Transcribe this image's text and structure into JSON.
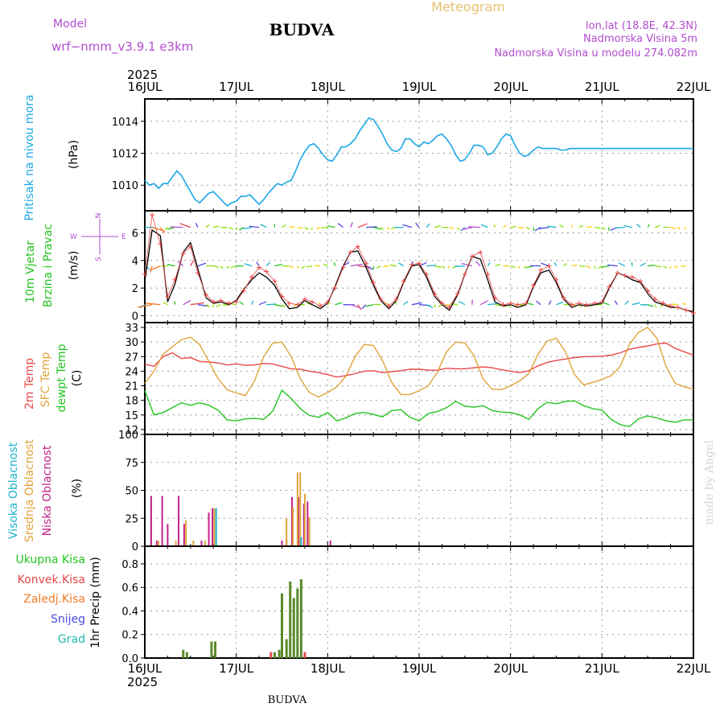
{
  "header": {
    "model_label": "Model",
    "model_name": "wrf−nmm_v3.9.1  e3km",
    "station": "BUDVA",
    "meteogram": "Meteogram",
    "lonlat": "lon,lat (18.8E, 42.3N)",
    "altitude": "Nadmorska Visina 5m",
    "model_altitude": "Nadmorska Visina u modelu 274.082m",
    "watermark": "made by Angel",
    "footer_station": "BUDVA"
  },
  "colors": {
    "pressure": "#1aa7e6",
    "t2m": "#e8484a",
    "sfc": "#e0a33a",
    "dewpt": "#22c41f",
    "high": "#1ab3cc",
    "mid": "#e0a33a",
    "low": "#c2228a",
    "total": "#5a8a2a",
    "conv": "#e8484a",
    "frozen": "#f07a2a",
    "snow": "#4a4ae0",
    "hail": "#22b8b0",
    "wind_obs": "#000000",
    "wind_cross": "#e8484a",
    "title_purple": "#b24ccf",
    "title_gold": "#e8c070"
  },
  "time_axis": {
    "year": "2025",
    "labels": [
      "16JUL",
      "17JUL",
      "18JUL",
      "19JUL",
      "20JUL",
      "21JUL",
      "22JUL"
    ]
  },
  "chart_data": [
    {
      "type": "line",
      "title": "Pritisak na nivou mora",
      "ylabel": "(hPa)",
      "ylim": [
        1008.4,
        1015.4
      ],
      "yticks": [
        1010,
        1012,
        1014
      ],
      "x_days": [
        0,
        0.05,
        0.1,
        0.15,
        0.2,
        0.25,
        0.3,
        0.35,
        0.4,
        0.45,
        0.5,
        0.55,
        0.6,
        0.65,
        0.7,
        0.75,
        0.8,
        0.85,
        0.9,
        0.95,
        1.0,
        1.05,
        1.1,
        1.15,
        1.2,
        1.25,
        1.3,
        1.35,
        1.4,
        1.45,
        1.5,
        1.55,
        1.6,
        1.65,
        1.7,
        1.75,
        1.8,
        1.85,
        1.9,
        1.95,
        2.0,
        2.05,
        2.1,
        2.15,
        2.2,
        2.25,
        2.3,
        2.35,
        2.4,
        2.45,
        2.5,
        2.55,
        2.6,
        2.65,
        2.7,
        2.75,
        2.8,
        2.85,
        2.9,
        2.95,
        3.0,
        3.05,
        3.1,
        3.15,
        3.2,
        3.25,
        3.3,
        3.35,
        3.4,
        3.45,
        3.5,
        3.55,
        3.6,
        3.65,
        3.7,
        3.75,
        3.8,
        3.85,
        3.9,
        3.95,
        4.0,
        4.05,
        4.1,
        4.15,
        4.2,
        4.25,
        4.3,
        4.35,
        4.4,
        4.45,
        4.5,
        4.55,
        4.6,
        4.65,
        4.7,
        4.75,
        4.8,
        4.85,
        4.9,
        4.95,
        5.0,
        5.05,
        5.1,
        5.15,
        5.2,
        5.25,
        5.3,
        5.35,
        5.4,
        5.45,
        5.5,
        5.55,
        5.6,
        5.65,
        5.7,
        5.75,
        5.8,
        5.85,
        5.9,
        5.95,
        6.0
      ],
      "values": [
        1010.3,
        1010.0,
        1010.1,
        1009.8,
        1010.1,
        1010.1,
        1010.5,
        1010.9,
        1010.6,
        1010.1,
        1009.6,
        1009.1,
        1008.9,
        1009.2,
        1009.5,
        1009.6,
        1009.3,
        1009.0,
        1008.7,
        1008.9,
        1009.0,
        1009.3,
        1009.3,
        1009.4,
        1009.1,
        1008.8,
        1009.1,
        1009.5,
        1009.8,
        1010.1,
        1010.0,
        1010.2,
        1010.3,
        1010.9,
        1011.6,
        1012.1,
        1012.5,
        1012.6,
        1012.3,
        1011.9,
        1011.6,
        1011.5,
        1011.9,
        1012.4,
        1012.4,
        1012.6,
        1012.9,
        1013.4,
        1013.8,
        1014.2,
        1014.1,
        1013.7,
        1013.2,
        1012.6,
        1012.2,
        1012.1,
        1012.3,
        1012.9,
        1012.9,
        1012.6,
        1012.4,
        1012.7,
        1012.6,
        1012.8,
        1013.1,
        1013.2,
        1012.9,
        1012.5,
        1011.9,
        1011.5,
        1011.6,
        1012.0,
        1012.5,
        1012.5,
        1012.4,
        1011.9,
        1012.0,
        1012.4,
        1012.9,
        1013.2,
        1013.1,
        1012.5,
        1012.0,
        1011.8,
        1011.9,
        1012.2,
        1012.4,
        1012.3,
        1012.3,
        1012.3,
        1012.3,
        1012.2,
        1012.2,
        1012.3,
        1012.3,
        1012.3,
        1012.3,
        1012.3,
        1012.3,
        1012.3,
        1012.3,
        1012.3,
        1012.3,
        1012.3,
        1012.3,
        1012.3,
        1012.3,
        1012.3,
        1012.3,
        1012.3,
        1012.3,
        1012.3,
        1012.3,
        1012.3,
        1012.3,
        1012.3,
        1012.3,
        1012.3,
        1012.3,
        1012.3,
        1012.3
      ]
    },
    {
      "type": "line",
      "title": "10m Vjetar Brzina i Pravac",
      "ylabel": "(m/s)",
      "compass": [
        "N",
        "W",
        "E",
        "S"
      ],
      "ylim": [
        -0.5,
        7.6
      ],
      "yticks": [
        0,
        2,
        4,
        6
      ],
      "x_days": [
        0,
        0.08,
        0.17,
        0.25,
        0.33,
        0.42,
        0.5,
        0.58,
        0.67,
        0.75,
        0.83,
        0.92,
        1.0,
        1.08,
        1.17,
        1.25,
        1.33,
        1.42,
        1.5,
        1.58,
        1.67,
        1.75,
        1.83,
        1.92,
        2.0,
        2.08,
        2.17,
        2.25,
        2.33,
        2.42,
        2.5,
        2.58,
        2.67,
        2.75,
        2.83,
        2.92,
        3.0,
        3.08,
        3.17,
        3.25,
        3.33,
        3.42,
        3.5,
        3.58,
        3.67,
        3.75,
        3.83,
        3.92,
        4.0,
        4.08,
        4.17,
        4.25,
        4.33,
        4.42,
        4.5,
        4.58,
        4.67,
        4.75,
        4.83,
        4.92,
        5.0,
        5.08,
        5.17,
        5.25,
        5.33,
        5.42,
        5.5,
        5.58,
        5.67,
        5.75,
        5.83,
        5.92,
        6.0
      ],
      "speed": [
        2.5,
        6.2,
        5.8,
        1.0,
        2.3,
        4.6,
        5.3,
        3.4,
        1.3,
        0.9,
        1.0,
        0.8,
        1.1,
        1.9,
        2.6,
        3.1,
        2.8,
        2.2,
        1.2,
        0.5,
        0.6,
        1.1,
        0.8,
        0.5,
        0.9,
        2.1,
        3.6,
        4.6,
        4.7,
        3.5,
        2.2,
        1.1,
        0.5,
        1.1,
        2.4,
        3.6,
        3.7,
        2.8,
        1.4,
        0.8,
        0.4,
        1.5,
        3.0,
        4.3,
        4.1,
        2.6,
        1.0,
        0.7,
        0.8,
        0.6,
        0.8,
        2.1,
        3.1,
        3.3,
        2.4,
        1.2,
        0.6,
        0.8,
        0.7,
        0.8,
        0.9,
        2.0,
        3.1,
        2.9,
        2.6,
        2.4,
        1.6,
        1.0,
        0.8,
        0.6,
        0.6,
        0.4,
        0.3
      ],
      "model_speed": [
        3.0,
        7.3,
        5.2,
        1.4,
        2.6,
        4.5,
        5.0,
        3.1,
        1.5,
        1.0,
        1.1,
        0.9,
        1.0,
        1.8,
        2.8,
        3.5,
        3.2,
        2.5,
        1.4,
        0.9,
        0.8,
        1.2,
        1.0,
        0.7,
        1.0,
        2.0,
        3.5,
        4.6,
        5.0,
        3.8,
        2.4,
        1.2,
        0.7,
        1.2,
        2.5,
        3.7,
        3.8,
        3.0,
        1.6,
        0.9,
        0.6,
        1.6,
        3.0,
        4.3,
        4.6,
        3.0,
        1.3,
        0.8,
        0.9,
        0.8,
        0.9,
        2.2,
        3.3,
        3.6,
        2.6,
        1.3,
        0.8,
        0.9,
        0.8,
        0.9,
        1.0,
        2.1,
        3.1,
        2.9,
        2.8,
        2.5,
        1.8,
        1.2,
        0.9,
        0.7,
        0.6,
        0.4,
        0.2
      ],
      "arrow_rows": [
        6.4,
        3.6,
        0.8
      ]
    },
    {
      "type": "line",
      "title": "2m Temp / SFC Temp / dewpt Temp",
      "ylabel": "(C)",
      "ylim": [
        11.0,
        34.0
      ],
      "yticks": [
        12,
        15,
        18,
        21,
        24,
        27,
        30,
        33
      ],
      "x_days": [
        0,
        0.1,
        0.2,
        0.3,
        0.4,
        0.5,
        0.6,
        0.7,
        0.8,
        0.9,
        1.0,
        1.1,
        1.2,
        1.3,
        1.4,
        1.5,
        1.6,
        1.7,
        1.8,
        1.9,
        2.0,
        2.1,
        2.2,
        2.3,
        2.4,
        2.5,
        2.6,
        2.7,
        2.8,
        2.9,
        3.0,
        3.1,
        3.2,
        3.3,
        3.4,
        3.5,
        3.6,
        3.7,
        3.8,
        3.9,
        4.0,
        4.1,
        4.2,
        4.3,
        4.4,
        4.5,
        4.6,
        4.7,
        4.8,
        4.9,
        5.0,
        5.1,
        5.2,
        5.3,
        5.4,
        5.5,
        5.6,
        5.7,
        5.8,
        5.9,
        6.0
      ],
      "series": [
        {
          "name": "2m Temp",
          "values": [
            25.5,
            25.0,
            27.0,
            27.8,
            26.6,
            26.8,
            26.0,
            25.9,
            25.7,
            25.3,
            25.5,
            25.2,
            25.3,
            25.6,
            25.5,
            25.0,
            24.5,
            24.4,
            24.0,
            23.7,
            23.3,
            22.8,
            23.1,
            23.5,
            24.0,
            24.1,
            23.7,
            23.9,
            24.1,
            24.4,
            24.4,
            24.2,
            24.2,
            24.6,
            24.5,
            24.5,
            24.7,
            24.9,
            24.7,
            24.3,
            24.0,
            23.7,
            24.1,
            25.1,
            25.8,
            26.2,
            26.5,
            26.8,
            27.0,
            27.0,
            27.1,
            27.3,
            27.8,
            28.5,
            28.9,
            29.2,
            29.6,
            29.8,
            28.7,
            28.0,
            27.3
          ]
        },
        {
          "name": "SFC Temp",
          "values": [
            21.5,
            24.0,
            27.5,
            29.0,
            30.5,
            31.0,
            29.5,
            26.0,
            22.5,
            20.2,
            19.5,
            19.0,
            22.0,
            27.0,
            29.8,
            30.0,
            27.0,
            22.5,
            19.6,
            18.7,
            19.6,
            20.8,
            23.0,
            27.0,
            29.5,
            29.3,
            26.2,
            21.7,
            19.2,
            19.2,
            20.0,
            21.0,
            23.8,
            28.0,
            30.0,
            29.8,
            27.2,
            22.4,
            20.3,
            20.2,
            21.0,
            22.0,
            23.5,
            27.5,
            30.2,
            30.8,
            28.0,
            23.3,
            21.2,
            21.7,
            22.3,
            23.1,
            25.0,
            29.5,
            32.0,
            33.0,
            30.8,
            25.0,
            21.5,
            20.8,
            20.3
          ]
        },
        {
          "name": "dewpt Temp",
          "values": [
            20.0,
            15.0,
            15.5,
            16.5,
            17.5,
            17.0,
            17.5,
            17.0,
            16.0,
            14.0,
            13.8,
            14.2,
            14.3,
            14.1,
            15.8,
            20.1,
            18.4,
            16.3,
            14.9,
            14.5,
            15.5,
            13.8,
            14.4,
            15.3,
            15.5,
            15.1,
            14.6,
            15.9,
            16.1,
            14.5,
            13.8,
            15.3,
            15.7,
            16.5,
            17.8,
            16.8,
            16.6,
            16.9,
            15.9,
            15.6,
            15.5,
            15.0,
            14.1,
            16.3,
            17.6,
            17.3,
            17.8,
            17.9,
            16.9,
            16.3,
            16.0,
            14.1,
            13.0,
            12.6,
            14.2,
            14.8,
            14.4,
            13.8,
            13.5,
            14.0,
            14.0
          ]
        }
      ]
    },
    {
      "type": "bar",
      "title": "Visoka Oblacnost / Srednja Oblacnost / Niska Oblacnost",
      "ylabel": "(%)",
      "ylim": [
        0,
        100
      ],
      "yticks": [
        0,
        25,
        50,
        75,
        100
      ],
      "series": [
        {
          "name": "Niska Oblacnost",
          "bars": [
            [
              0.07,
              45
            ],
            [
              0.13,
              5
            ],
            [
              0.19,
              45
            ],
            [
              0.25,
              20
            ],
            [
              0.37,
              45
            ],
            [
              0.43,
              20
            ],
            [
              0.62,
              5
            ],
            [
              0.7,
              30
            ],
            [
              0.74,
              34
            ],
            [
              1.5,
              5
            ],
            [
              1.55,
              6
            ],
            [
              1.61,
              44
            ],
            [
              1.68,
              44
            ],
            [
              1.74,
              38
            ],
            [
              1.78,
              40
            ],
            [
              2.03,
              5
            ]
          ]
        },
        {
          "name": "Srednja Oblacnost",
          "bars": [
            [
              0.15,
              5
            ],
            [
              0.34,
              5
            ],
            [
              0.45,
              23
            ],
            [
              0.53,
              5
            ],
            [
              0.66,
              5
            ],
            [
              0.76,
              34
            ],
            [
              1.55,
              25
            ],
            [
              1.62,
              35
            ],
            [
              1.67,
              66
            ],
            [
              1.7,
              66
            ],
            [
              1.75,
              47
            ],
            [
              1.8,
              26
            ]
          ]
        },
        {
          "name": "Visoka Oblacnost",
          "bars": [
            [
              0.78,
              34
            ],
            [
              1.71,
              8
            ]
          ]
        }
      ]
    },
    {
      "type": "bar",
      "title": "1hr Precip",
      "ylabel": "(mm)",
      "ylim": [
        0,
        0.95
      ],
      "yticks": [
        0.0,
        0.2,
        0.4,
        0.6,
        0.8
      ],
      "legend": [
        "Ukupna Kisa",
        "Konvek.Kisa",
        "Zaledj.Kisa",
        "Snijeg",
        "Grad"
      ],
      "series": [
        {
          "name": "Ukupna Kisa",
          "bars": [
            [
              0.42,
              0.07
            ],
            [
              0.46,
              0.05
            ],
            [
              0.73,
              0.14
            ],
            [
              0.77,
              0.14
            ],
            [
              1.42,
              0.05
            ],
            [
              1.47,
              0.07
            ],
            [
              1.5,
              0.55
            ],
            [
              1.55,
              0.16
            ],
            [
              1.59,
              0.65
            ],
            [
              1.63,
              0.51
            ],
            [
              1.67,
              0.59
            ],
            [
              1.71,
              0.67
            ]
          ]
        },
        {
          "name": "Konvek.Kisa",
          "bars": [
            [
              1.38,
              0.05
            ],
            [
              1.75,
              0.05
            ]
          ]
        }
      ]
    }
  ]
}
